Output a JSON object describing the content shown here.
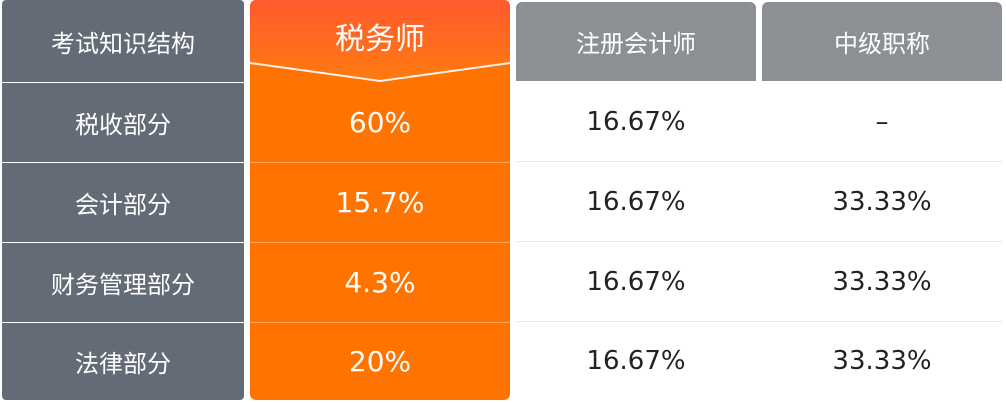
{
  "header": {
    "row_label": "考试知识结构",
    "tax": "税务师",
    "cpa": "注册会计师",
    "intermediate": "中级职称"
  },
  "rows": [
    {
      "label": "税收部分",
      "tax": "60%",
      "cpa": "16.67%",
      "intermediate": "–"
    },
    {
      "label": "会计部分",
      "tax": "15.7%",
      "cpa": "16.67%",
      "intermediate": "33.33%"
    },
    {
      "label": "财务管理部分",
      "tax": "4.3%",
      "cpa": "16.67%",
      "intermediate": "33.33%"
    },
    {
      "label": "法律部分",
      "tax": "20%",
      "cpa": "16.67%",
      "intermediate": "33.33%"
    }
  ],
  "colors": {
    "label_column": "#636b76",
    "highlight": "#ff7300",
    "highlight_header_top": "#ff6a2a",
    "gray_header": "#8c9095"
  }
}
